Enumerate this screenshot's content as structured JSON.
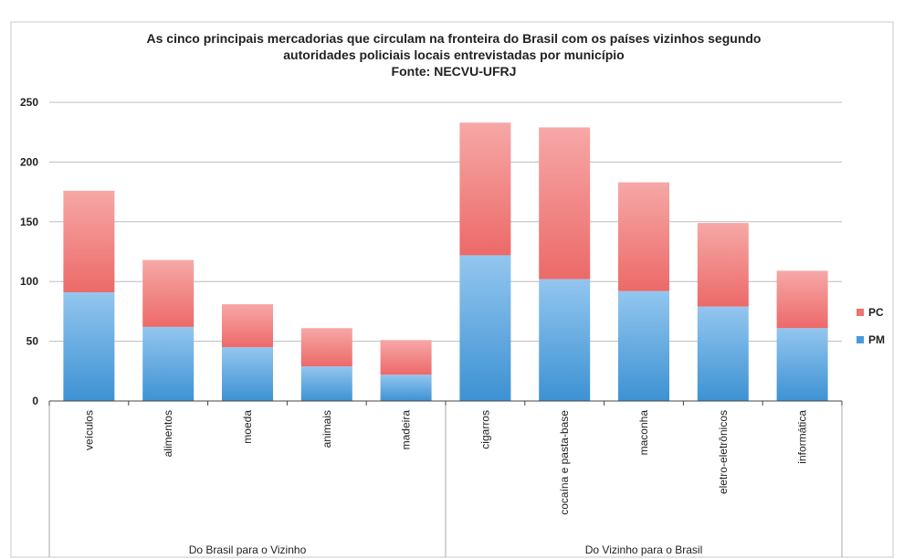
{
  "chart_data": {
    "type": "bar",
    "stacked": true,
    "title_lines": [
      "As cinco principais mercadorias que circulam na fronteira do Brasil com os países vizinhos segundo",
      "autoridades policiais locais entrevistadas por município",
      "Fonte: NECVU-UFRJ"
    ],
    "categories": [
      "veículos",
      "alimentos",
      "moeda",
      "animais",
      "madeira",
      "cigarros",
      "cocaína e pasta-base",
      "maconha",
      "eletro-eletrônicos",
      "informática"
    ],
    "groups": [
      {
        "label": "Do Brasil para o Vizinho",
        "count": 5
      },
      {
        "label": "Do Vizinho para o Brasil",
        "count": 5
      }
    ],
    "series": [
      {
        "name": "PM",
        "color": "#4a9ad8",
        "values": [
          91,
          62,
          45,
          29,
          22,
          122,
          102,
          92,
          79,
          61
        ]
      },
      {
        "name": "PC",
        "color": "#ee7472",
        "values": [
          85,
          56,
          36,
          32,
          29,
          111,
          127,
          91,
          70,
          48
        ]
      }
    ],
    "legend_order": [
      "PC",
      "PM"
    ],
    "legend_position": "right",
    "ylim": [
      0,
      250
    ],
    "yticks": [
      0,
      50,
      100,
      150,
      200,
      250
    ],
    "grid": true
  }
}
